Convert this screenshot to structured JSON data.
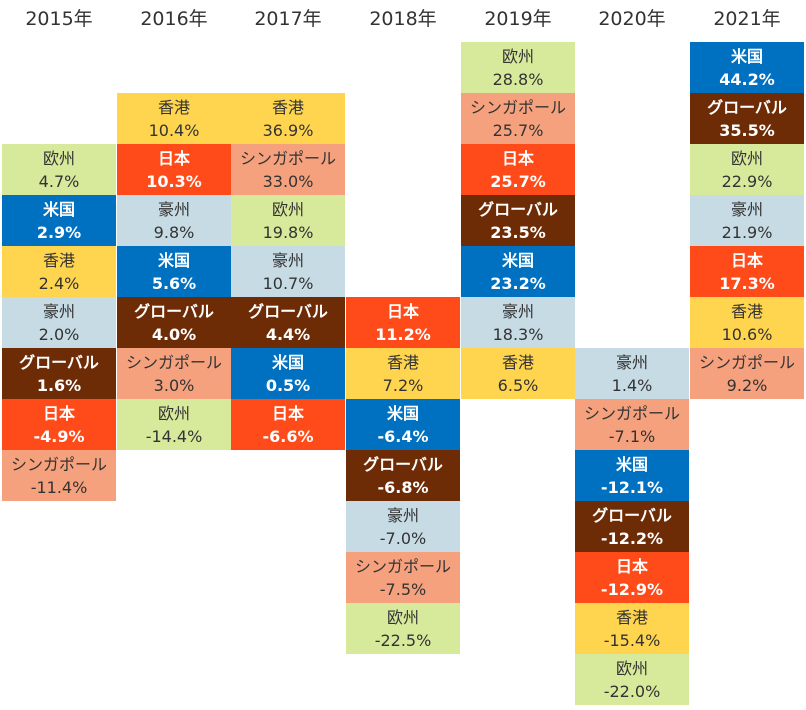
{
  "chart_data": {
    "type": "table",
    "title": "",
    "unit": "%",
    "columns": [
      {
        "year": "2015年",
        "cells": [
          {
            "region": "欧州",
            "label": "4.7%",
            "value": 4.7,
            "color": "#d7e99b",
            "text_color": "#333333",
            "bold": false
          },
          {
            "region": "米国",
            "label": "2.9%",
            "value": 2.9,
            "color": "#0070c0",
            "text_color": "#ffffff",
            "bold": true
          },
          {
            "region": "香港",
            "label": "2.4%",
            "value": 2.4,
            "color": "#ffd54f",
            "text_color": "#333333",
            "bold": false
          },
          {
            "region": "豪州",
            "label": "2.0%",
            "value": 2.0,
            "color": "#c7dbe5",
            "text_color": "#333333",
            "bold": false
          },
          {
            "region": "グローバル",
            "label": "1.6%",
            "value": 1.6,
            "color": "#6e2c06",
            "text_color": "#ffffff",
            "bold": true
          },
          {
            "region": "日本",
            "label": "-4.9%",
            "value": -4.9,
            "color": "#ff4a1a",
            "text_color": "#ffffff",
            "bold": true
          },
          {
            "region": "シンガポール",
            "label": "-11.4%",
            "value": -11.4,
            "color": "#f5a17e",
            "text_color": "#333333",
            "bold": false
          }
        ]
      },
      {
        "year": "2016年",
        "cells": [
          {
            "region": "香港",
            "label": "10.4%",
            "value": 10.4,
            "color": "#ffd54f",
            "text_color": "#333333",
            "bold": false
          },
          {
            "region": "日本",
            "label": "10.3%",
            "value": 10.3,
            "color": "#ff4a1a",
            "text_color": "#ffffff",
            "bold": true
          },
          {
            "region": "豪州",
            "label": "9.8%",
            "value": 9.8,
            "color": "#c7dbe5",
            "text_color": "#333333",
            "bold": false
          },
          {
            "region": "米国",
            "label": "5.6%",
            "value": 5.6,
            "color": "#0070c0",
            "text_color": "#ffffff",
            "bold": true
          },
          {
            "region": "グローバル",
            "label": "4.0%",
            "value": 4.0,
            "color": "#6e2c06",
            "text_color": "#ffffff",
            "bold": true
          },
          {
            "region": "シンガポール",
            "label": "3.0%",
            "value": 3.0,
            "color": "#f5a17e",
            "text_color": "#333333",
            "bold": false
          },
          {
            "region": "欧州",
            "label": "-14.4%",
            "value": -14.4,
            "color": "#d7e99b",
            "text_color": "#333333",
            "bold": false
          }
        ]
      },
      {
        "year": "2017年",
        "cells": [
          {
            "region": "香港",
            "label": "36.9%",
            "value": 36.9,
            "color": "#ffd54f",
            "text_color": "#333333",
            "bold": false
          },
          {
            "region": "シンガポール",
            "label": "33.0%",
            "value": 33.0,
            "color": "#f5a17e",
            "text_color": "#333333",
            "bold": false
          },
          {
            "region": "欧州",
            "label": "19.8%",
            "value": 19.8,
            "color": "#d7e99b",
            "text_color": "#333333",
            "bold": false
          },
          {
            "region": "豪州",
            "label": "10.7%",
            "value": 10.7,
            "color": "#c7dbe5",
            "text_color": "#333333",
            "bold": false
          },
          {
            "region": "グローバル",
            "label": "4.4%",
            "value": 4.4,
            "color": "#6e2c06",
            "text_color": "#ffffff",
            "bold": true
          },
          {
            "region": "米国",
            "label": "0.5%",
            "value": 0.5,
            "color": "#0070c0",
            "text_color": "#ffffff",
            "bold": true
          },
          {
            "region": "日本",
            "label": "-6.6%",
            "value": -6.6,
            "color": "#ff4a1a",
            "text_color": "#ffffff",
            "bold": true
          }
        ]
      },
      {
        "year": "2018年",
        "cells": [
          {
            "region": "日本",
            "label": "11.2%",
            "value": 11.2,
            "color": "#ff4a1a",
            "text_color": "#ffffff",
            "bold": true
          },
          {
            "region": "香港",
            "label": "7.2%",
            "value": 7.2,
            "color": "#ffd54f",
            "text_color": "#333333",
            "bold": false
          },
          {
            "region": "米国",
            "label": "-6.4%",
            "value": -6.4,
            "color": "#0070c0",
            "text_color": "#ffffff",
            "bold": true
          },
          {
            "region": "グローバル",
            "label": "-6.8%",
            "value": -6.8,
            "color": "#6e2c06",
            "text_color": "#ffffff",
            "bold": true
          },
          {
            "region": "豪州",
            "label": "-7.0%",
            "value": -7.0,
            "color": "#c7dbe5",
            "text_color": "#333333",
            "bold": false
          },
          {
            "region": "シンガポール",
            "label": "-7.5%",
            "value": -7.5,
            "color": "#f5a17e",
            "text_color": "#333333",
            "bold": false
          },
          {
            "region": "欧州",
            "label": "-22.5%",
            "value": -22.5,
            "color": "#d7e99b",
            "text_color": "#333333",
            "bold": false
          }
        ]
      },
      {
        "year": "2019年",
        "cells": [
          {
            "region": "欧州",
            "label": "28.8%",
            "value": 28.8,
            "color": "#d7e99b",
            "text_color": "#333333",
            "bold": false
          },
          {
            "region": "シンガポール",
            "label": "25.7%",
            "value": 25.7,
            "color": "#f5a17e",
            "text_color": "#333333",
            "bold": false
          },
          {
            "region": "日本",
            "label": "25.7%",
            "value": 25.7,
            "color": "#ff4a1a",
            "text_color": "#ffffff",
            "bold": true
          },
          {
            "region": "グローバル",
            "label": "23.5%",
            "value": 23.5,
            "color": "#6e2c06",
            "text_color": "#ffffff",
            "bold": true
          },
          {
            "region": "米国",
            "label": "23.2%",
            "value": 23.2,
            "color": "#0070c0",
            "text_color": "#ffffff",
            "bold": true
          },
          {
            "region": "豪州",
            "label": "18.3%",
            "value": 18.3,
            "color": "#c7dbe5",
            "text_color": "#333333",
            "bold": false
          },
          {
            "region": "香港",
            "label": "6.5%",
            "value": 6.5,
            "color": "#ffd54f",
            "text_color": "#333333",
            "bold": false
          }
        ]
      },
      {
        "year": "2020年",
        "cells": [
          {
            "region": "豪州",
            "label": "1.4%",
            "value": 1.4,
            "color": "#c7dbe5",
            "text_color": "#333333",
            "bold": false
          },
          {
            "region": "シンガポール",
            "label": "-7.1%",
            "value": -7.1,
            "color": "#f5a17e",
            "text_color": "#333333",
            "bold": false
          },
          {
            "region": "米国",
            "label": "-12.1%",
            "value": -12.1,
            "color": "#0070c0",
            "text_color": "#ffffff",
            "bold": true
          },
          {
            "region": "グローバル",
            "label": "-12.2%",
            "value": -12.2,
            "color": "#6e2c06",
            "text_color": "#ffffff",
            "bold": true
          },
          {
            "region": "日本",
            "label": "-12.9%",
            "value": -12.9,
            "color": "#ff4a1a",
            "text_color": "#ffffff",
            "bold": true
          },
          {
            "region": "香港",
            "label": "-15.4%",
            "value": -15.4,
            "color": "#ffd54f",
            "text_color": "#333333",
            "bold": false
          },
          {
            "region": "欧州",
            "label": "-22.0%",
            "value": -22.0,
            "color": "#d7e99b",
            "text_color": "#333333",
            "bold": false
          }
        ]
      },
      {
        "year": "2021年",
        "cells": [
          {
            "region": "米国",
            "label": "44.2%",
            "value": 44.2,
            "color": "#0070c0",
            "text_color": "#ffffff",
            "bold": true
          },
          {
            "region": "グローバル",
            "label": "35.5%",
            "value": 35.5,
            "color": "#6e2c06",
            "text_color": "#ffffff",
            "bold": true
          },
          {
            "region": "欧州",
            "label": "22.9%",
            "value": 22.9,
            "color": "#d7e99b",
            "text_color": "#333333",
            "bold": false
          },
          {
            "region": "豪州",
            "label": "21.9%",
            "value": 21.9,
            "color": "#c7dbe5",
            "text_color": "#333333",
            "bold": false
          },
          {
            "region": "日本",
            "label": "17.3%",
            "value": 17.3,
            "color": "#ff4a1a",
            "text_color": "#ffffff",
            "bold": true
          },
          {
            "region": "香港",
            "label": "10.6%",
            "value": 10.6,
            "color": "#ffd54f",
            "text_color": "#333333",
            "bold": false
          },
          {
            "region": "シンガポール",
            "label": "9.2%",
            "value": 9.2,
            "color": "#f5a17e",
            "text_color": "#333333",
            "bold": false
          }
        ]
      }
    ]
  }
}
